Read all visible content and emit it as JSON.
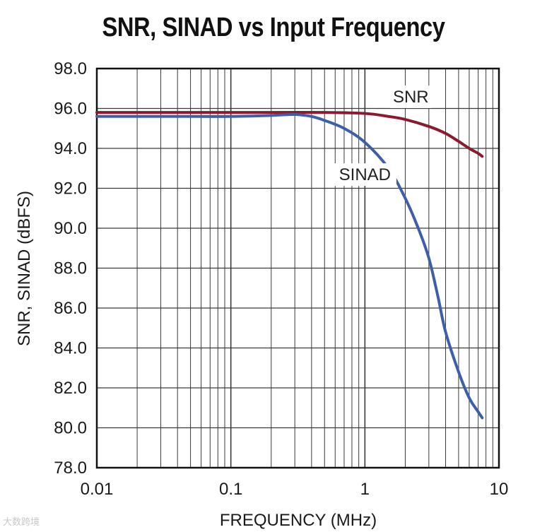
{
  "chart_data": {
    "type": "line",
    "title": "SNR, SINAD vs Input Frequency",
    "xlabel": "FREQUENCY (MHz)",
    "ylabel": "SNR, SINAD (dBFS)",
    "xscale": "log",
    "xlim": [
      0.01,
      10
    ],
    "ylim": [
      78.0,
      98.0
    ],
    "x_ticks": [
      0.01,
      0.1,
      1,
      10
    ],
    "x_tick_labels": [
      "0.01",
      "0.1",
      "1",
      "10"
    ],
    "y_ticks": [
      78,
      80,
      82,
      84,
      86,
      88,
      90,
      92,
      94,
      96,
      98
    ],
    "y_tick_labels": [
      "78.0",
      "80.0",
      "82.0",
      "84.0",
      "86.0",
      "88.0",
      "90.0",
      "92.0",
      "94.0",
      "96.0",
      "98.0"
    ],
    "grid": true,
    "legend": "inline labels",
    "series": [
      {
        "name": "SNR",
        "color": "#8b1a2e",
        "x": [
          0.01,
          0.02,
          0.05,
          0.1,
          0.2,
          0.5,
          1.0,
          1.5,
          2.0,
          3.0,
          4.0,
          5.0,
          6.0,
          7.0,
          7.5
        ],
        "y": [
          95.8,
          95.8,
          95.8,
          95.8,
          95.8,
          95.8,
          95.75,
          95.6,
          95.45,
          95.1,
          94.75,
          94.35,
          94.0,
          93.75,
          93.6
        ]
      },
      {
        "name": "SINAD",
        "color": "#3d5fa8",
        "x": [
          0.01,
          0.05,
          0.1,
          0.2,
          0.3,
          0.4,
          0.5,
          0.7,
          1.0,
          1.5,
          2.0,
          2.5,
          3.0,
          3.5,
          4.0,
          5.0,
          6.0,
          7.0,
          7.5
        ],
        "y": [
          95.6,
          95.6,
          95.6,
          95.65,
          95.7,
          95.6,
          95.4,
          95.0,
          94.3,
          93.0,
          91.5,
          90.0,
          88.5,
          86.6,
          84.8,
          82.8,
          81.5,
          80.8,
          80.5
        ]
      }
    ],
    "annotations": [
      {
        "text": "SNR",
        "x": 2.2,
        "y": 96.3,
        "series": "SNR"
      },
      {
        "text": "SINAD",
        "x": 1.0,
        "y": 92.4,
        "series": "SINAD"
      }
    ]
  },
  "watermark": "大数跨境"
}
